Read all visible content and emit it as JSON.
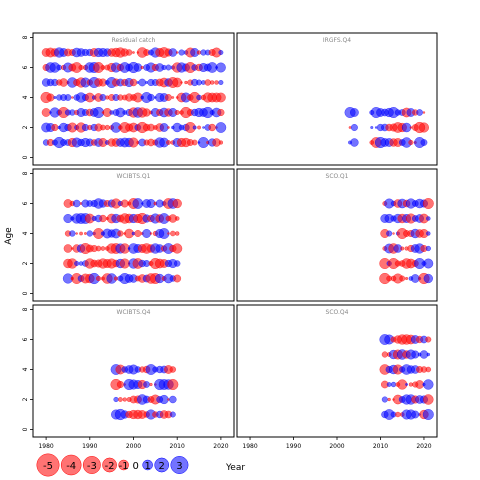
{
  "chart_data": {
    "type": "scatter",
    "subtype": "bubble-residual-grid",
    "xlabel": "Year",
    "ylabel": "Age",
    "xlim": [
      1977,
      2023
    ],
    "ylim": [
      -0.5,
      8.3
    ],
    "xticks": [
      1980,
      1990,
      2000,
      2010,
      2020
    ],
    "yticks": [
      0,
      2,
      4,
      6,
      8
    ],
    "colors": {
      "positive": "#0000ff",
      "negative": "#ff0000",
      "fill_opacity": 0.55
    },
    "panels": [
      {
        "title": "Residual catch",
        "years": [
          1980,
          2020
        ],
        "ages": [
          1,
          7
        ]
      },
      {
        "title": "IRGFS.Q4",
        "years": [
          2003,
          2020
        ],
        "ages": [
          1,
          3
        ],
        "gaps": [
          [
            2005,
            2007
          ]
        ]
      },
      {
        "title": "WCIBTS.Q1",
        "years": [
          1985,
          2010
        ],
        "ages": [
          1,
          6
        ]
      },
      {
        "title": "SCO.Q1",
        "years": [
          2011,
          2021
        ],
        "ages": [
          1,
          6
        ]
      },
      {
        "title": "WCIBTS.Q4",
        "years": [
          1996,
          2009
        ],
        "ages": [
          1,
          4
        ]
      },
      {
        "title": "SCO.Q4",
        "years": [
          2011,
          2021
        ],
        "ages": [
          1,
          6
        ]
      }
    ],
    "legend": {
      "values": [
        -5,
        -4,
        -3,
        -2,
        -1,
        0,
        1,
        2,
        3
      ],
      "labels": [
        "-5",
        "-4",
        "-3",
        "-2",
        "-1",
        "0",
        "1",
        "2",
        "3"
      ]
    }
  }
}
